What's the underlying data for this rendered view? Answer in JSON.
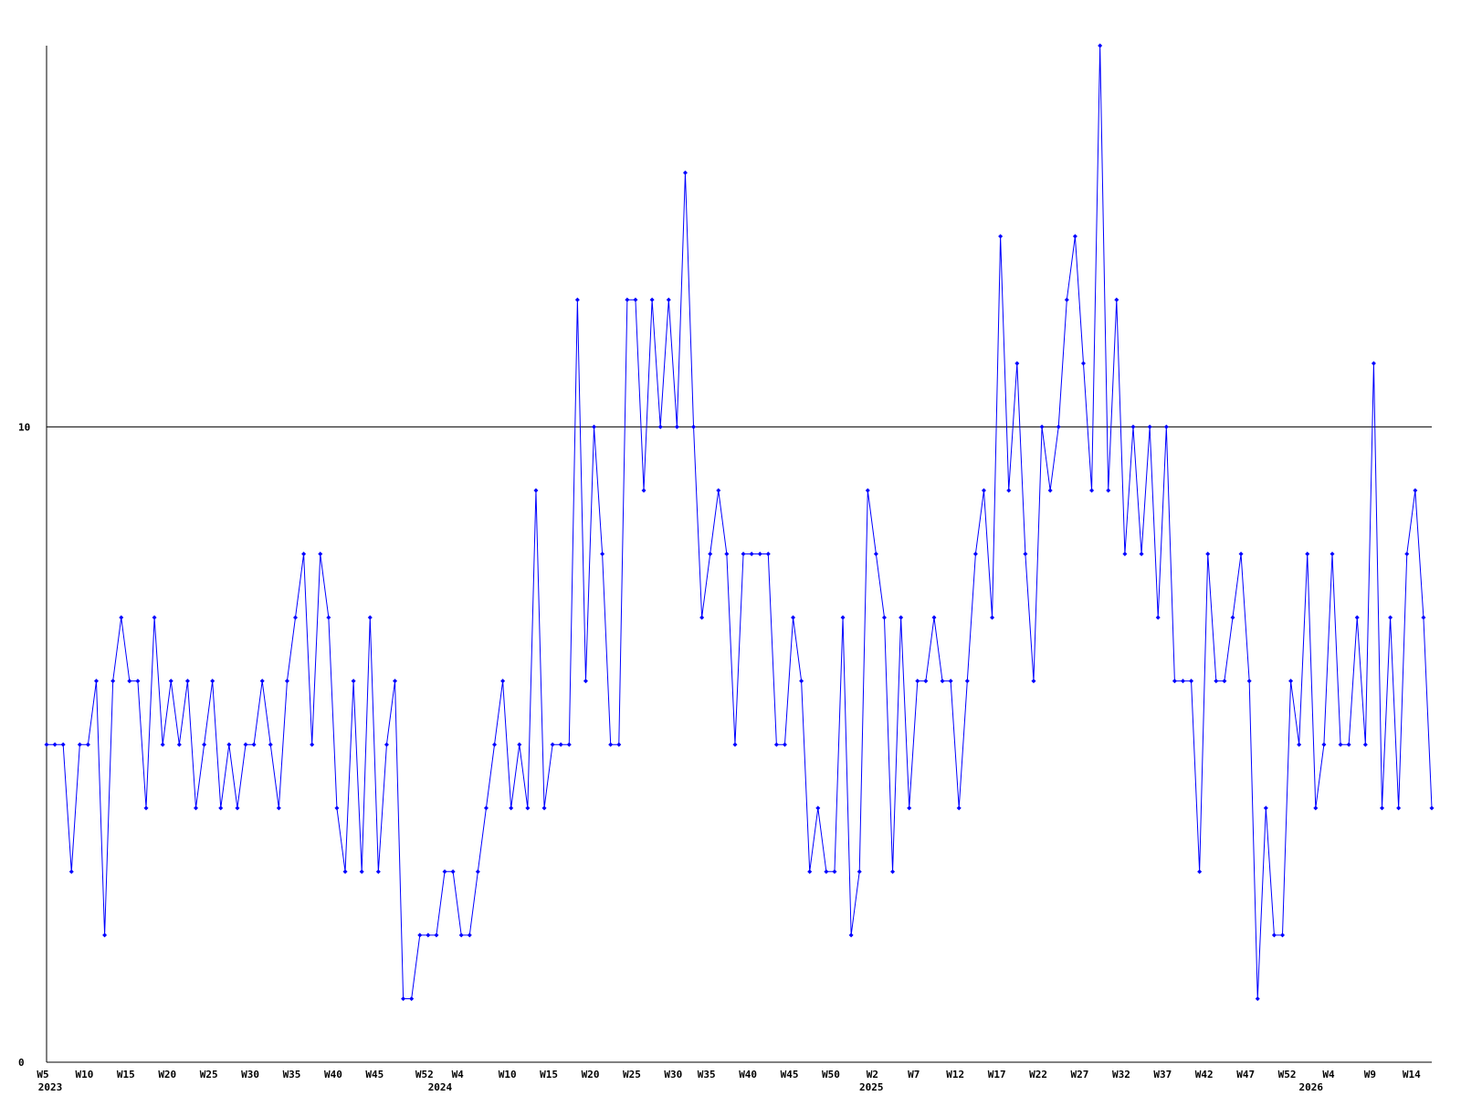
{
  "chart_data": {
    "type": "line",
    "color": "#0000ff",
    "grid": true,
    "ylim": [
      0,
      16
    ],
    "yticks": [
      0,
      10
    ],
    "categories": [
      "W5",
      null,
      null,
      null,
      null,
      "W10",
      null,
      null,
      null,
      null,
      "W15",
      null,
      null,
      null,
      null,
      "W20",
      null,
      null,
      null,
      null,
      "W25",
      null,
      null,
      null,
      null,
      "W30",
      null,
      null,
      null,
      null,
      "W35",
      null,
      null,
      null,
      null,
      "W40",
      null,
      null,
      null,
      null,
      "W45",
      null,
      null,
      null,
      null,
      null,
      "W52",
      null,
      null,
      null,
      "W4",
      null,
      null,
      null,
      null,
      null,
      "W10",
      null,
      null,
      null,
      null,
      "W15",
      null,
      null,
      null,
      null,
      "W20",
      null,
      null,
      null,
      null,
      "W25",
      null,
      null,
      null,
      null,
      "W30",
      null,
      null,
      null,
      "W35",
      null,
      null,
      null,
      null,
      "W40",
      null,
      null,
      null,
      null,
      "W45",
      null,
      null,
      null,
      null,
      "W50",
      null,
      null,
      null,
      null,
      "W2",
      null,
      null,
      null,
      null,
      "W7",
      null,
      null,
      null,
      null,
      "W12",
      null,
      null,
      null,
      null,
      "W17",
      null,
      null,
      null,
      null,
      "W22",
      null,
      null,
      null,
      null,
      "W27",
      null,
      null,
      null,
      null,
      "W32",
      null,
      null,
      null,
      null,
      "W37",
      null,
      null,
      null,
      null,
      "W42",
      null,
      null,
      null,
      null,
      "W47",
      null,
      null,
      null,
      null,
      "W52",
      null,
      null,
      null,
      null,
      "W4",
      null,
      null,
      null,
      null,
      "W9",
      null,
      null,
      null,
      null,
      "W14",
      null,
      null
    ],
    "year_labels": [
      "2023",
      null,
      null,
      null,
      null,
      null,
      null,
      null,
      null,
      null,
      null,
      null,
      null,
      null,
      null,
      null,
      null,
      null,
      null,
      null,
      null,
      null,
      null,
      null,
      null,
      null,
      null,
      null,
      null,
      null,
      null,
      null,
      null,
      null,
      null,
      null,
      null,
      null,
      null,
      null,
      null,
      null,
      null,
      null,
      null,
      null,
      null,
      "2024",
      null,
      null,
      null,
      null,
      null,
      null,
      null,
      null,
      null,
      null,
      null,
      null,
      null,
      null,
      null,
      null,
      null,
      null,
      null,
      null,
      null,
      null,
      null,
      null,
      null,
      null,
      null,
      null,
      null,
      null,
      null,
      null,
      null,
      null,
      null,
      null,
      null,
      null,
      null,
      null,
      null,
      null,
      null,
      null,
      null,
      null,
      null,
      null,
      null,
      null,
      null,
      "2025",
      null,
      null,
      null,
      null,
      null,
      null,
      null,
      null,
      null,
      null,
      null,
      null,
      null,
      null,
      null,
      null,
      null,
      null,
      null,
      null,
      null,
      null,
      null,
      null,
      null,
      null,
      null,
      null,
      null,
      null,
      null,
      null,
      null,
      null,
      null,
      null,
      null,
      null,
      null,
      null,
      null,
      null,
      null,
      null,
      null,
      null,
      null,
      null,
      null,
      null,
      null,
      null,
      "2026",
      null,
      null,
      null,
      null,
      null,
      null,
      null,
      null,
      null,
      null,
      null,
      null,
      null,
      null,
      null
    ],
    "values": [
      5,
      5,
      5,
      3,
      5,
      5,
      6,
      2,
      6,
      7,
      6,
      6,
      4,
      7,
      5,
      6,
      5,
      6,
      4,
      5,
      6,
      4,
      5,
      4,
      5,
      5,
      6,
      5,
      4,
      6,
      7,
      8,
      5,
      8,
      7,
      4,
      3,
      6,
      3,
      7,
      3,
      5,
      6,
      1,
      1,
      2,
      2,
      2,
      3,
      3,
      2,
      2,
      3,
      4,
      5,
      6,
      4,
      5,
      4,
      9,
      4,
      5,
      5,
      5,
      12,
      6,
      10,
      8,
      5,
      5,
      12,
      12,
      9,
      12,
      10,
      12,
      10,
      14,
      10,
      7,
      8,
      9,
      8,
      5,
      8,
      8,
      8,
      8,
      5,
      5,
      7,
      6,
      3,
      4,
      3,
      3,
      7,
      2,
      3,
      9,
      8,
      7,
      3,
      7,
      4,
      6,
      6,
      7,
      6,
      6,
      4,
      6,
      8,
      9,
      7,
      13,
      9,
      11,
      8,
      6,
      10,
      9,
      10,
      12,
      13,
      11,
      9,
      16,
      9,
      12,
      8,
      10,
      8,
      10,
      7,
      10,
      6,
      6,
      6,
      3,
      8,
      6,
      6,
      7,
      8,
      6,
      1,
      4,
      2,
      2,
      6,
      5,
      8,
      4,
      5,
      8,
      5,
      5,
      7,
      5,
      11,
      4,
      7,
      4,
      8,
      9,
      7,
      4
    ]
  }
}
